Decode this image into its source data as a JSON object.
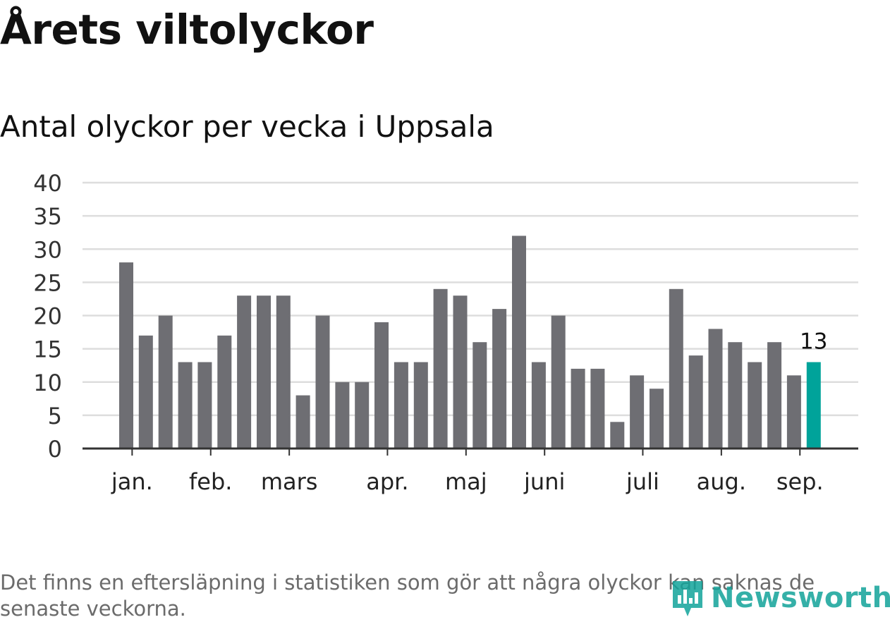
{
  "title": "Årets viltolyckor",
  "subtitle": "Antal olyckor per vecka i Uppsala",
  "footnote": "Det finns en eftersläpning i statistiken som gör att några olyckor kan saknas de senaste veckorna.",
  "logo_text": "Newsworthy",
  "colors": {
    "bar": "#6e6e73",
    "highlight": "#00a39a",
    "grid": "#dddddd",
    "axis": "#333333",
    "logo": "#12a39a"
  },
  "chart_data": {
    "type": "bar",
    "title": "Årets viltolyckor",
    "subtitle": "Antal olyckor per vecka i Uppsala",
    "xlabel": "",
    "ylabel": "",
    "ylim": [
      0,
      40
    ],
    "yticks": [
      0,
      5,
      10,
      15,
      20,
      25,
      30,
      35,
      40
    ],
    "grid": true,
    "values": [
      28,
      17,
      20,
      13,
      13,
      17,
      23,
      23,
      23,
      8,
      20,
      10,
      10,
      19,
      13,
      13,
      24,
      23,
      16,
      21,
      32,
      13,
      20,
      12,
      12,
      4,
      11,
      9,
      24,
      14,
      18,
      16,
      13,
      16,
      11,
      13
    ],
    "highlight_index": 35,
    "highlight_label": "13",
    "month_labels": [
      {
        "label": "jan.",
        "week_index": 0.3
      },
      {
        "label": "feb.",
        "week_index": 4.3
      },
      {
        "label": "mars",
        "week_index": 8.3
      },
      {
        "label": "apr.",
        "week_index": 13.3
      },
      {
        "label": "maj",
        "week_index": 17.3
      },
      {
        "label": "juni",
        "week_index": 21.3
      },
      {
        "label": "juli",
        "week_index": 26.3
      },
      {
        "label": "aug.",
        "week_index": 30.3
      },
      {
        "label": "sep.",
        "week_index": 34.3
      }
    ]
  }
}
